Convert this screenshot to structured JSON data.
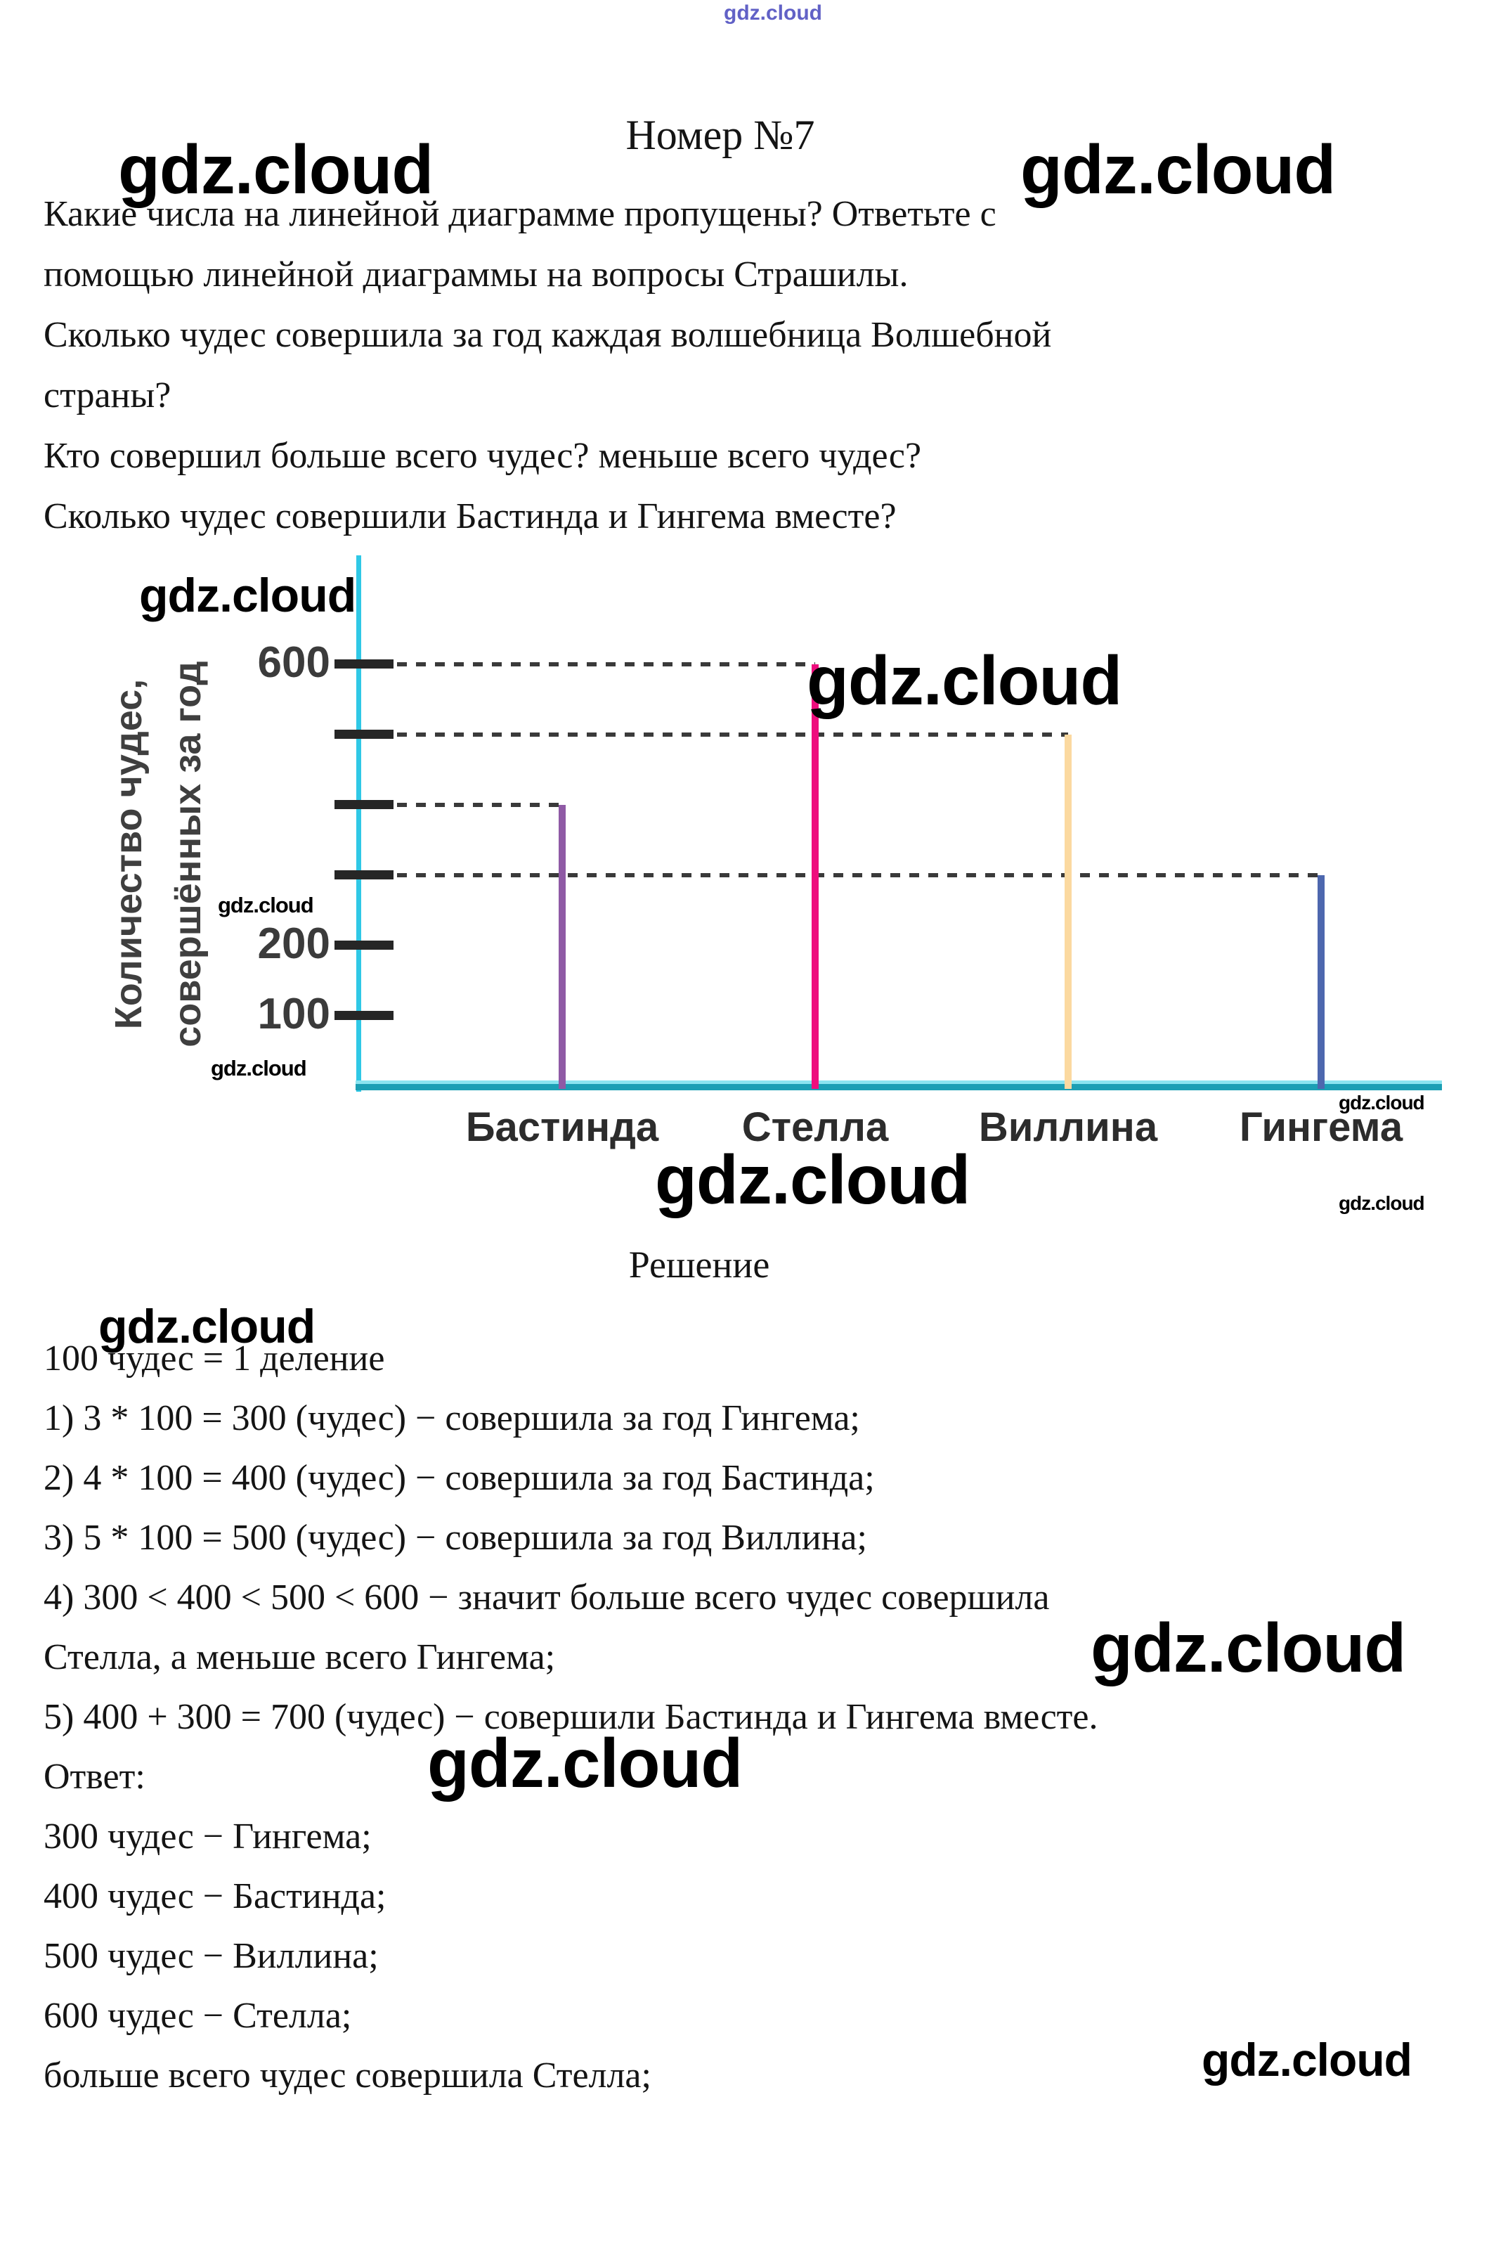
{
  "page": {
    "title": "Номер №7",
    "problem_lines": [
      "Какие числа на линейной диаграмме пропущены? Ответьте с",
      "помощью линейной диаграммы на вопросы Страшилы.",
      "Сколько чудес совершила за год каждая волшебница Волшебной",
      "страны?",
      "Кто совершил больше всего чудес? меньше всего чудес?",
      "Сколько чудес совершили Бастинда и Гингема вместе?"
    ],
    "solution_heading": "Решение",
    "solution_lines": [
      "100 чудес = 1 деление",
      "1) 3 * 100 = 300 (чудес) − совершила за год Гингема;",
      "2) 4 * 100 = 400 (чудес) − совершила за год Бастинда;",
      "3) 5 * 100 = 500 (чудес) − совершила за год Виллина;",
      "4) 300 < 400 < 500 < 600 − значит больше всего чудес совершила",
      "Стелла, а меньше всего Гингема;",
      "5) 400 + 300 = 700 (чудес) − совершили Бастинда и Гингема вместе.",
      "Ответ:",
      "300 чудес − Гингема;",
      "400 чудес − Бастинда;",
      "500 чудес − Виллина;",
      "600 чудес − Стелла;",
      "больше всего чудес совершила Стелла;"
    ]
  },
  "watermark": {
    "text": "gdz.cloud",
    "color": "#000000",
    "top_banner_color": "#3a3ab8"
  },
  "chart_data": {
    "type": "bar",
    "title": "",
    "categories": [
      "Бастинда",
      "Стелла",
      "Виллина",
      "Гингема"
    ],
    "series": [
      {
        "name": "Количество чудес за год",
        "values": [
          400,
          600,
          500,
          300
        ]
      }
    ],
    "bar_colors": [
      "#8f5aa5",
      "#ee0d7d",
      "#fbd9a0",
      "#4d67ae"
    ],
    "ylabel_lines": [
      "Количество чудес,",
      "совершённых за год"
    ],
    "xlabel": "",
    "ylim": [
      0,
      650
    ],
    "y_ticks": [
      {
        "value": 600,
        "label": "600"
      },
      {
        "value": 500,
        "label": ""
      },
      {
        "value": 400,
        "label": ""
      },
      {
        "value": 300,
        "label": ""
      },
      {
        "value": 200,
        "label": "200"
      },
      {
        "value": 100,
        "label": "100"
      }
    ],
    "missing_tick_labels": [
      500,
      400,
      300
    ],
    "dashed_guides": [
      {
        "value": 600,
        "to_category": "Стелла"
      },
      {
        "value": 500,
        "to_category": "Виллина"
      },
      {
        "value": 400,
        "to_category": "Бастинда"
      },
      {
        "value": 300,
        "to_category": "Гингема"
      }
    ],
    "grid": false,
    "legend_position": "none",
    "axis_color": "#2fc8e6",
    "baseline_color": "#1b9fb4",
    "baseline_highlight_color": "#8be4f0",
    "dash_color": "#3a3a3a",
    "tick_color": "#262626",
    "tick_label_color": "#3b3b3b",
    "category_label_color": "#2c2c2c"
  }
}
